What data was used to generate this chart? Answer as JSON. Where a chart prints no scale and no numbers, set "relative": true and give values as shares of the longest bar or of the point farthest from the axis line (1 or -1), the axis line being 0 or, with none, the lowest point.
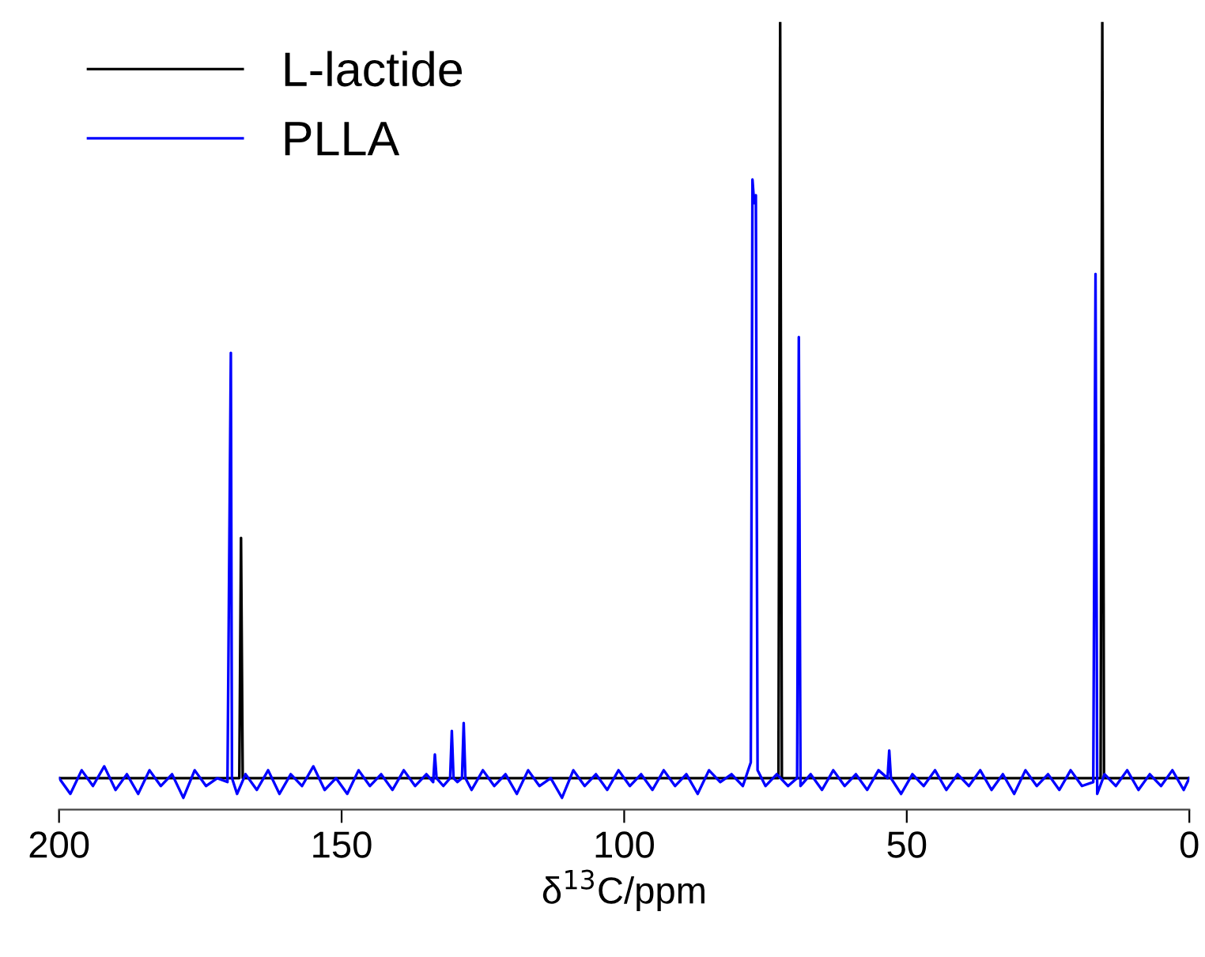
{
  "chart_data": {
    "type": "line",
    "relative": true,
    "xlabel": "δ$^{13}$C/ppm",
    "xlim": [
      200,
      0
    ],
    "xticks": [
      200,
      150,
      100,
      50,
      0
    ],
    "tick_labels": "x",
    "grid": false,
    "legend": "top left",
    "marker": "none",
    "line_style": "solid",
    "series": [
      {
        "name": "L-lactide",
        "color": "#000000",
        "x": [
          200,
          170,
          168.1,
          167.8,
          167.5,
          100,
          72.7,
          72.4,
          72.1,
          15.7,
          15.4,
          15.1,
          0
        ],
        "values": [
          0.04,
          0.04,
          0.04,
          0.345,
          0.04,
          0.04,
          0.04,
          1,
          0.04,
          0.04,
          1,
          0.04,
          0.04
        ]
      },
      {
        "name": "PLLA",
        "color": "#0000ff",
        "x": [
          200,
          198,
          196,
          194,
          192,
          190,
          188,
          186,
          184,
          182,
          180,
          178,
          176,
          174,
          172,
          170.2,
          169.6,
          169.4,
          168.5,
          167,
          165,
          163,
          161,
          159,
          157,
          155,
          153,
          151,
          149,
          147,
          145,
          143,
          141,
          139,
          137,
          135,
          133.8,
          133.5,
          133.2,
          132,
          130.8,
          130.5,
          130.2,
          129.5,
          128.7,
          128.4,
          128.1,
          127,
          125,
          123,
          121,
          119,
          117,
          115,
          113,
          111,
          109,
          107,
          105,
          103,
          101,
          99,
          97,
          95,
          93,
          91,
          89,
          87,
          85,
          83,
          81,
          79,
          77.6,
          77.3,
          77.0,
          76.7,
          76.4,
          75,
          73,
          71,
          69.4,
          69.1,
          68.8,
          67,
          65,
          63,
          61,
          59,
          57,
          55,
          53.4,
          53.1,
          52.8,
          51,
          49,
          47,
          45,
          43,
          41,
          39,
          37,
          35,
          33,
          31,
          29,
          27,
          25,
          23,
          21,
          19,
          17,
          16.6,
          16.3,
          15,
          13,
          11,
          9,
          7,
          5,
          3,
          1,
          0
        ],
        "values": [
          0.04,
          0.02,
          0.05,
          0.03,
          0.055,
          0.025,
          0.045,
          0.02,
          0.05,
          0.03,
          0.045,
          0.015,
          0.05,
          0.03,
          0.04,
          0.035,
          0.58,
          0.04,
          0.02,
          0.045,
          0.025,
          0.05,
          0.02,
          0.045,
          0.03,
          0.055,
          0.025,
          0.04,
          0.02,
          0.05,
          0.03,
          0.045,
          0.025,
          0.05,
          0.03,
          0.045,
          0.035,
          0.07,
          0.04,
          0.03,
          0.04,
          0.1,
          0.04,
          0.035,
          0.04,
          0.11,
          0.04,
          0.025,
          0.05,
          0.03,
          0.045,
          0.02,
          0.05,
          0.03,
          0.04,
          0.015,
          0.05,
          0.03,
          0.045,
          0.025,
          0.05,
          0.03,
          0.045,
          0.025,
          0.05,
          0.03,
          0.045,
          0.02,
          0.05,
          0.035,
          0.045,
          0.03,
          0.06,
          0.8,
          0.77,
          0.78,
          0.05,
          0.03,
          0.045,
          0.03,
          0.04,
          0.6,
          0.03,
          0.045,
          0.025,
          0.05,
          0.03,
          0.045,
          0.025,
          0.05,
          0.04,
          0.075,
          0.04,
          0.02,
          0.045,
          0.03,
          0.05,
          0.025,
          0.045,
          0.03,
          0.05,
          0.025,
          0.045,
          0.02,
          0.05,
          0.03,
          0.045,
          0.025,
          0.05,
          0.03,
          0.035,
          0.68,
          0.02,
          0.045,
          0.03,
          0.05,
          0.025,
          0.045,
          0.03,
          0.05,
          0.025,
          0.04
        ]
      }
    ]
  }
}
